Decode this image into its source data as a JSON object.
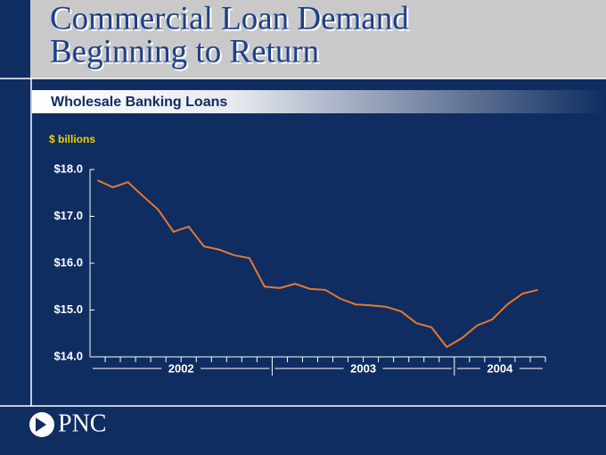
{
  "header": {
    "title_line1": "Commercial Loan Demand",
    "title_line2": "Beginning to Return"
  },
  "chart_data": {
    "type": "line",
    "title": "Wholesale Banking Loans",
    "y_label": "$ billions",
    "categories": [
      "2002",
      "2002",
      "2002",
      "2002",
      "2002",
      "2002",
      "2002",
      "2002",
      "2002",
      "2002",
      "2002",
      "2002",
      "2003",
      "2003",
      "2003",
      "2003",
      "2003",
      "2003",
      "2003",
      "2003",
      "2003",
      "2003",
      "2003",
      "2003",
      "2004",
      "2004",
      "2004",
      "2004",
      "2004",
      "2004"
    ],
    "series": [
      {
        "name": "Wholesale Banking Loans",
        "color": "#e8772e",
        "values": [
          17.77,
          17.62,
          17.73,
          17.43,
          17.14,
          16.67,
          16.78,
          16.36,
          16.29,
          16.17,
          16.11,
          15.5,
          15.47,
          15.56,
          15.45,
          15.43,
          15.24,
          15.12,
          15.1,
          15.07,
          14.97,
          14.72,
          14.63,
          14.21,
          14.4,
          14.67,
          14.8,
          15.12,
          15.35,
          15.43
        ]
      }
    ],
    "ylim": [
      14,
      18
    ],
    "yticks": [
      {
        "value": 14,
        "label": "$14.0"
      },
      {
        "value": 15,
        "label": "$15.0"
      },
      {
        "value": 16,
        "label": "$16.0"
      },
      {
        "value": 17,
        "label": "$17.0"
      },
      {
        "value": 18,
        "label": "$18.0"
      }
    ]
  },
  "footer": {
    "logo": "PNC"
  }
}
